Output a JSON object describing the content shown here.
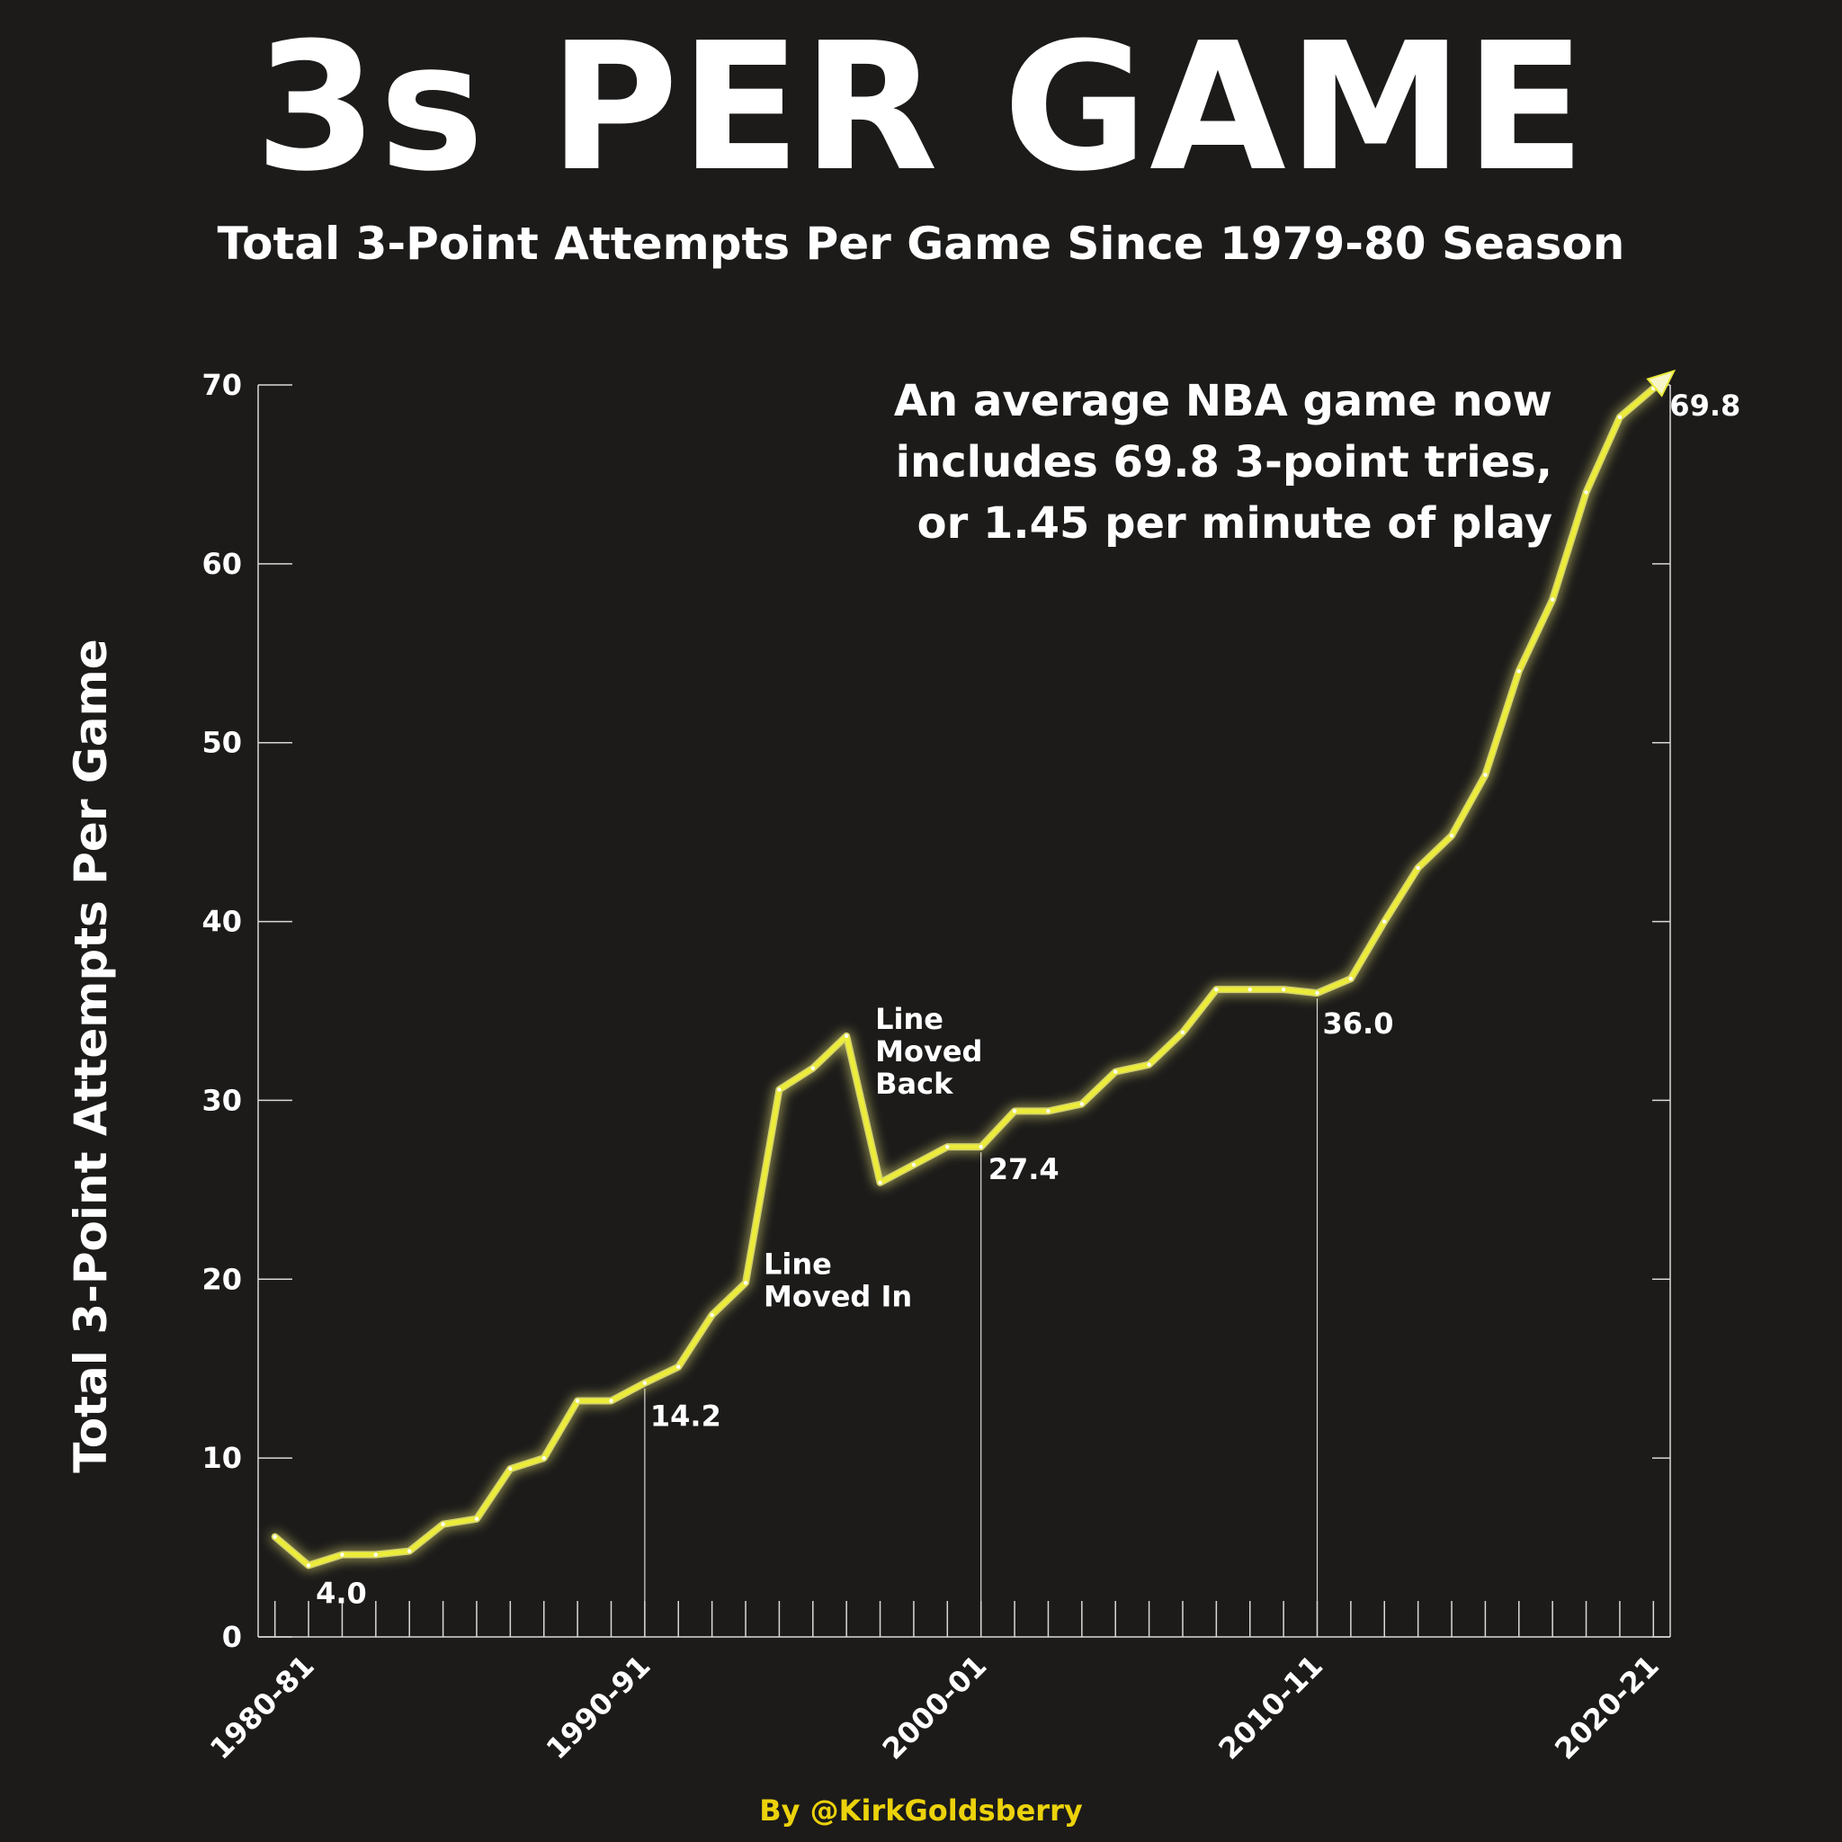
{
  "header": {
    "title": "3s PER GAME",
    "subtitle": "Total 3-Point Attempts Per Game Since 1979-80 Season"
  },
  "callout": {
    "line1": "An average NBA game now",
    "line2": "includes 69.8 3-point tries,",
    "line3": "or 1.45 per minute of play"
  },
  "credit": "By @KirkGoldsberry",
  "colors": {
    "background": "#1c1b1a",
    "line": "#ecec3a",
    "glow": "#f5f27a",
    "axis": "#d9d9d9",
    "text": "#ffffff",
    "credit": "#ecd20b"
  },
  "chart_data": {
    "type": "line",
    "title": "3s PER GAME",
    "subtitle": "Total 3-Point Attempts Per Game Since 1979-80 Season",
    "ylabel": "Total 3-Point Attempts Per Game",
    "xlabel": "",
    "ylim": [
      0,
      70
    ],
    "yticks": [
      0,
      10,
      20,
      30,
      40,
      50,
      60,
      70
    ],
    "x_tick_labels": [
      "1980-81",
      "1990-91",
      "2000-01",
      "2010-11",
      "2020-21"
    ],
    "x": [
      "1979-80",
      "1980-81",
      "1981-82",
      "1982-83",
      "1983-84",
      "1984-85",
      "1985-86",
      "1986-87",
      "1987-88",
      "1988-89",
      "1989-90",
      "1990-91",
      "1991-92",
      "1992-93",
      "1993-94",
      "1994-95",
      "1995-96",
      "1996-97",
      "1997-98",
      "1998-99",
      "1999-00",
      "2000-01",
      "2001-02",
      "2002-03",
      "2003-04",
      "2004-05",
      "2005-06",
      "2006-07",
      "2007-08",
      "2008-09",
      "2009-10",
      "2010-11",
      "2011-12",
      "2012-13",
      "2013-14",
      "2014-15",
      "2015-16",
      "2016-17",
      "2017-18",
      "2018-19",
      "2019-20",
      "2020-21"
    ],
    "series": [
      {
        "values": [
          5.6,
          4.0,
          4.6,
          4.6,
          4.8,
          6.3,
          6.6,
          9.4,
          10.0,
          13.2,
          13.2,
          14.2,
          15.1,
          18.0,
          19.8,
          30.6,
          31.8,
          33.6,
          25.4,
          26.4,
          27.4,
          27.4,
          29.4,
          29.4,
          29.8,
          31.6,
          32.0,
          33.8,
          36.2,
          36.2,
          36.2,
          36.0,
          36.8,
          40.0,
          43.0,
          44.8,
          48.2,
          54.0,
          58.0,
          64.0,
          68.2,
          69.8
        ]
      }
    ],
    "annotations": [
      {
        "label": "4.0",
        "x": "1980-81",
        "value": 4.0
      },
      {
        "label": "14.2",
        "x": "1990-91",
        "value": 14.2
      },
      {
        "label": "27.4",
        "x": "2000-01",
        "value": 27.4
      },
      {
        "label": "36.0",
        "x": "2010-11",
        "value": 36.0
      },
      {
        "label": "69.8",
        "x": "2020-21",
        "value": 69.8
      }
    ],
    "notes": [
      {
        "lines": [
          "Line",
          "Moved In"
        ],
        "x": "1993-94"
      },
      {
        "lines": [
          "Line",
          "Moved",
          "Back"
        ],
        "x": "1996-97"
      }
    ],
    "grid": false,
    "legend": "none"
  }
}
